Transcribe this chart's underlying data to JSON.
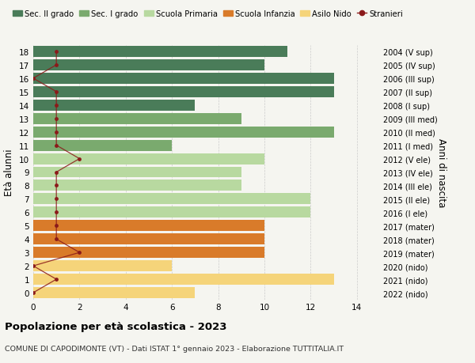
{
  "ages": [
    18,
    17,
    16,
    15,
    14,
    13,
    12,
    11,
    10,
    9,
    8,
    7,
    6,
    5,
    4,
    3,
    2,
    1,
    0
  ],
  "years": [
    "2004 (V sup)",
    "2005 (IV sup)",
    "2006 (III sup)",
    "2007 (II sup)",
    "2008 (I sup)",
    "2009 (III med)",
    "2010 (II med)",
    "2011 (I med)",
    "2012 (V ele)",
    "2013 (IV ele)",
    "2014 (III ele)",
    "2015 (II ele)",
    "2016 (I ele)",
    "2017 (mater)",
    "2018 (mater)",
    "2019 (mater)",
    "2020 (nido)",
    "2021 (nido)",
    "2022 (nido)"
  ],
  "bar_values": [
    11,
    10,
    13,
    13,
    7,
    9,
    13,
    6,
    10,
    9,
    9,
    12,
    12,
    10,
    10,
    10,
    6,
    13,
    7
  ],
  "bar_colors": [
    "#4a7c59",
    "#4a7c59",
    "#4a7c59",
    "#4a7c59",
    "#4a7c59",
    "#7aaa6e",
    "#7aaa6e",
    "#7aaa6e",
    "#b8d9a0",
    "#b8d9a0",
    "#b8d9a0",
    "#b8d9a0",
    "#b8d9a0",
    "#d97b2a",
    "#d97b2a",
    "#d97b2a",
    "#f5d47a",
    "#f5d47a",
    "#f5d47a"
  ],
  "stranieri_values": [
    1,
    1,
    0,
    1,
    1,
    1,
    1,
    1,
    2,
    1,
    1,
    1,
    1,
    1,
    1,
    2,
    0,
    1,
    0
  ],
  "stranieri_color": "#8b1a1a",
  "legend_labels": [
    "Sec. II grado",
    "Sec. I grado",
    "Scuola Primaria",
    "Scuola Infanzia",
    "Asilo Nido",
    "Stranieri"
  ],
  "legend_colors": [
    "#4a7c59",
    "#7aaa6e",
    "#b8d9a0",
    "#d97b2a",
    "#f5d47a",
    "#8b1a1a"
  ],
  "ylabel_left": "Età alunni",
  "ylabel_right": "Anni di nascita",
  "title": "Popolazione per età scolastica - 2023",
  "subtitle": "COMUNE DI CAPODIMONTE (VT) - Dati ISTAT 1° gennaio 2023 - Elaborazione TUTTITALIA.IT",
  "xlim": [
    0,
    15
  ],
  "background_color": "#f5f5f0"
}
